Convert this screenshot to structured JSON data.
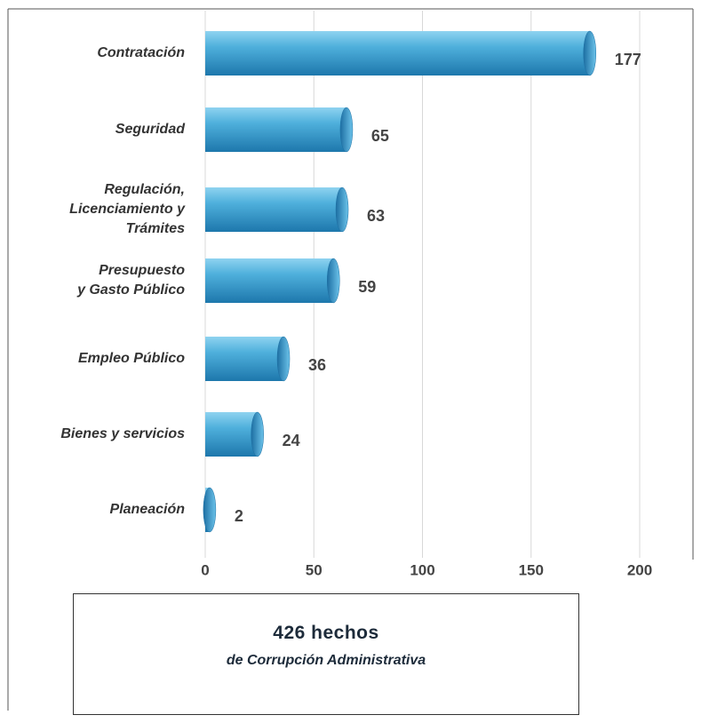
{
  "chart_data": {
    "type": "bar",
    "orientation": "horizontal",
    "categories": [
      "Contratación",
      "Seguridad",
      "Regulación,\nLicenciamiento y\nTrámites",
      "Presupuesto\ny Gasto Público",
      "Empleo Público",
      "Bienes y servicios",
      "Planeación"
    ],
    "values": [
      177,
      65,
      63,
      59,
      36,
      24,
      2
    ],
    "color": "#2e8fc4",
    "xlim": [
      0,
      200
    ],
    "xticks": [
      0,
      50,
      100,
      150,
      200
    ],
    "grid": true,
    "annotations": [
      "426 hechos",
      "de Corrupción Administrativa"
    ]
  }
}
